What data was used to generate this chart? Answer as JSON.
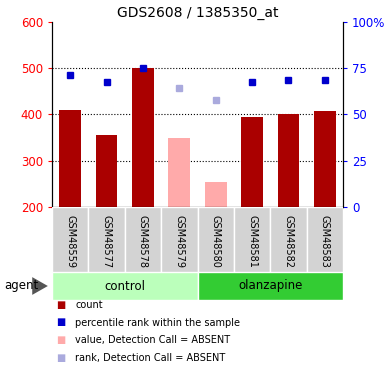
{
  "title": "GDS2608 / 1385350_at",
  "samples": [
    "GSM48559",
    "GSM48577",
    "GSM48578",
    "GSM48579",
    "GSM48580",
    "GSM48581",
    "GSM48582",
    "GSM48583"
  ],
  "bar_values": [
    410,
    355,
    500,
    350,
    255,
    395,
    400,
    408
  ],
  "bar_absent": [
    false,
    false,
    false,
    true,
    true,
    false,
    false,
    false
  ],
  "rank_values": [
    485,
    470,
    500,
    457,
    432,
    470,
    475,
    475
  ],
  "rank_absent": [
    false,
    false,
    false,
    true,
    true,
    false,
    false,
    false
  ],
  "groups": [
    {
      "label": "control",
      "indices": [
        0,
        1,
        2,
        3
      ],
      "color": "#bbffbb"
    },
    {
      "label": "olanzapine",
      "indices": [
        4,
        5,
        6,
        7
      ],
      "color": "#33cc33"
    }
  ],
  "bar_color_present": "#aa0000",
  "bar_color_absent": "#ffaaaa",
  "rank_color_present": "#0000cc",
  "rank_color_absent": "#aaaadd",
  "ylim_left": [
    200,
    600
  ],
  "ylim_right": [
    0,
    100
  ],
  "yticks_left": [
    200,
    300,
    400,
    500,
    600
  ],
  "yticks_right": [
    0,
    25,
    50,
    75,
    100
  ],
  "dotted_lines": [
    300,
    400,
    500
  ],
  "sample_box_color": "#d3d3d3",
  "agent_label": "agent"
}
